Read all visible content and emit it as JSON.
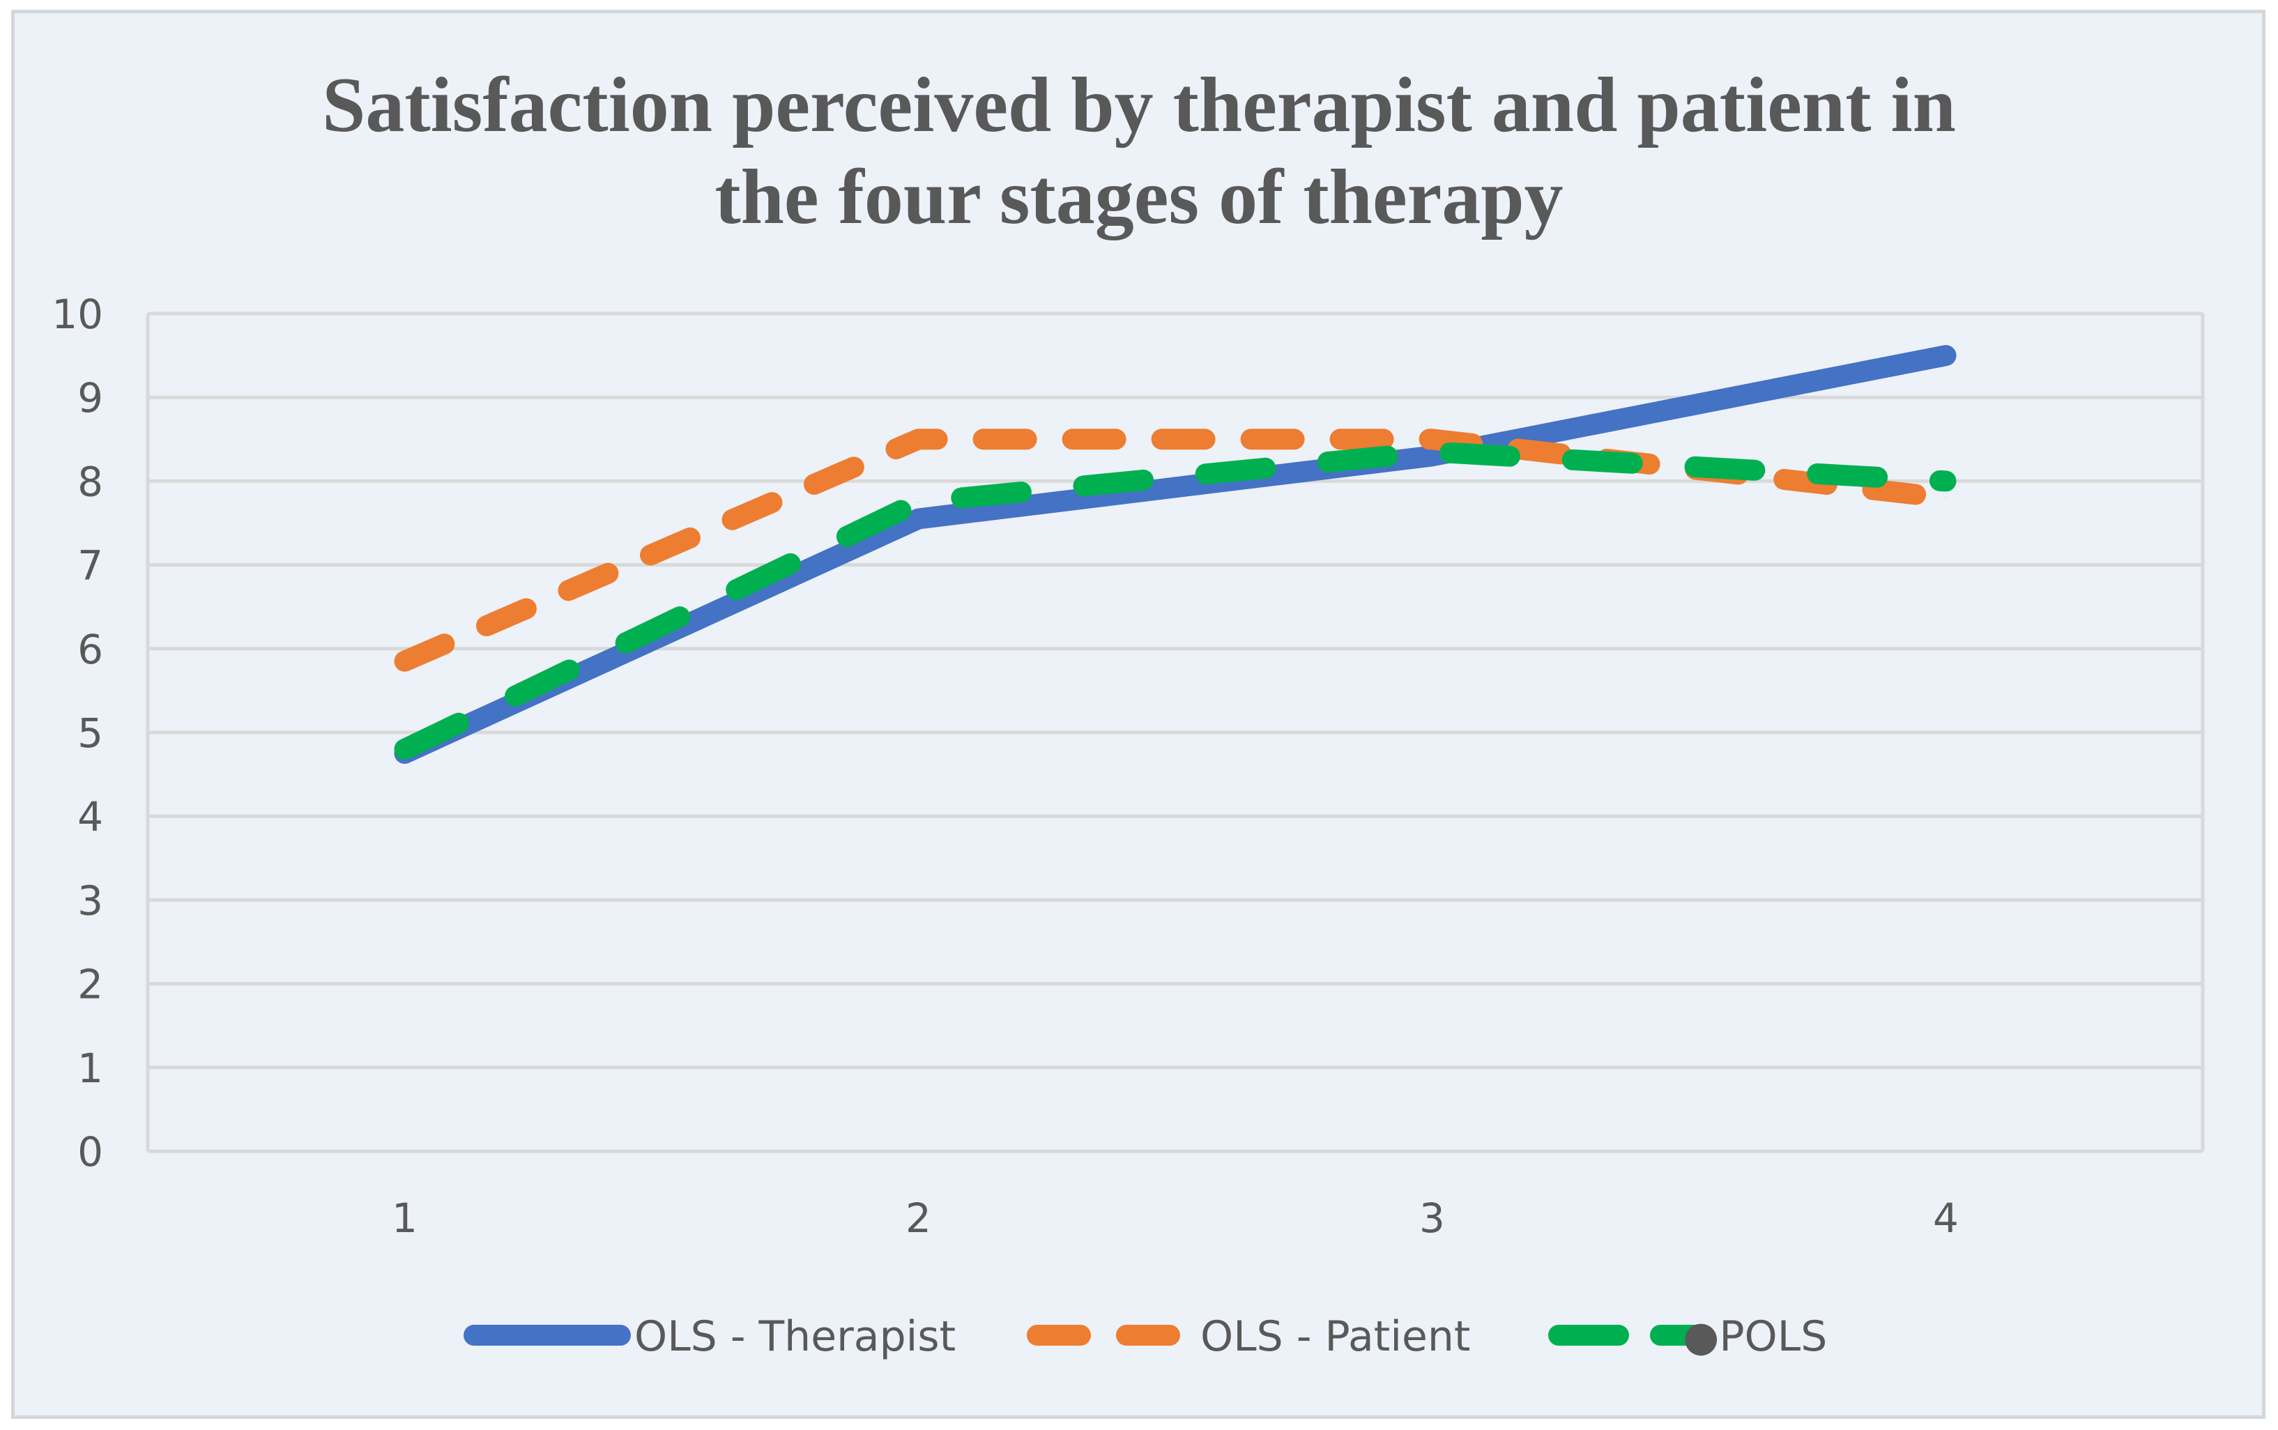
{
  "chart_data": {
    "type": "line",
    "title_lines": [
      "Satisfaction perceived by therapist and patient in",
      "the four stages of therapy"
    ],
    "xlabel": "",
    "ylabel": "",
    "categories": [
      "1",
      "2",
      "3",
      "4"
    ],
    "y_ticks": [
      "0",
      "1",
      "2",
      "3",
      "4",
      "5",
      "6",
      "7",
      "8",
      "9",
      "10"
    ],
    "ylim": [
      0,
      10
    ],
    "grid": true,
    "legend_position": "bottom",
    "series": [
      {
        "name": "OLS - Therapist",
        "values": [
          4.75,
          7.55,
          8.3,
          9.5
        ],
        "color": "#4472c4",
        "style": "solid"
      },
      {
        "name": "OLS - Patient",
        "values": [
          5.85,
          8.5,
          8.5,
          7.8
        ],
        "color": "#ed7d31",
        "style": "dashed"
      },
      {
        "name": "POLS",
        "values": [
          4.8,
          7.75,
          8.35,
          8.0
        ],
        "color": "#00b050",
        "style": "dashed-long"
      }
    ],
    "legend_labels": [
      "OLS - Therapist",
      "OLS - Patient",
      "●POLS"
    ]
  }
}
